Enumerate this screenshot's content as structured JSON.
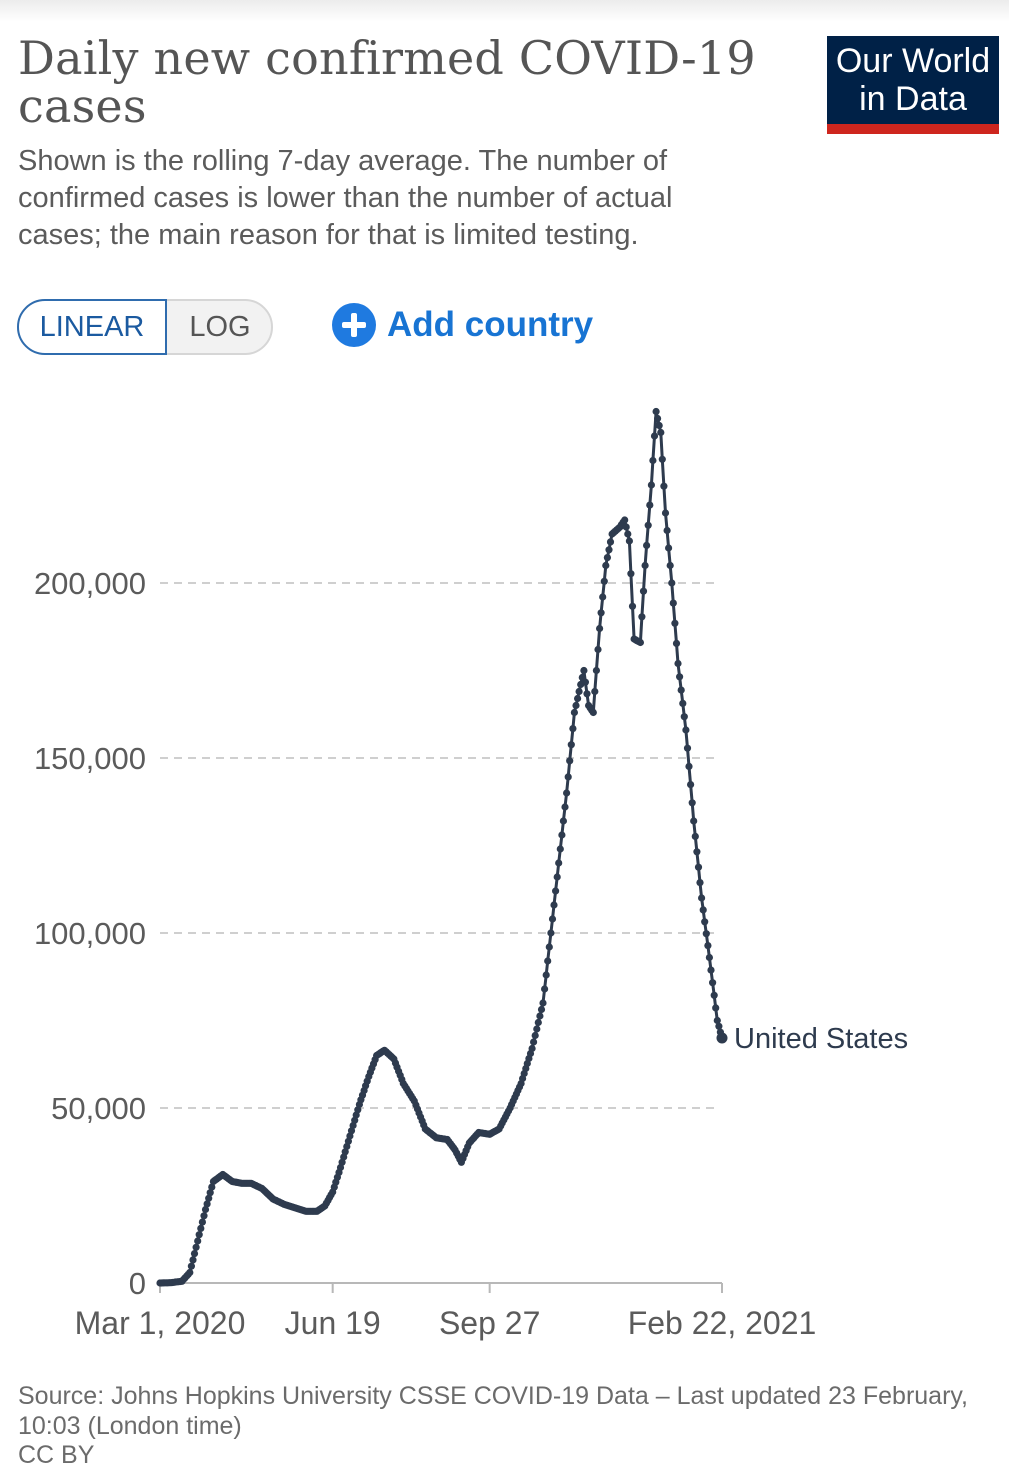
{
  "header": {
    "title": "Daily new confirmed COVID-19 cases",
    "subtitle": "Shown is the rolling 7-day average. The number of confirmed cases is lower than the number of actual cases; the main reason for that is limited testing.",
    "logo_line1": "Our World",
    "logo_line2": "in Data"
  },
  "controls": {
    "linear_label": "LINEAR",
    "log_label": "LOG",
    "add_country_label": "Add country",
    "selected_scale": "linear"
  },
  "footer": {
    "source": "Source: Johns Hopkins University CSSE COVID-19 Data – Last updated 23 February, 10:03 (London time)",
    "license": "CC BY"
  },
  "colors": {
    "line": "#2e3b4e",
    "grid": "#cfcfcf",
    "axis_text": "#5b5b5b",
    "accent_blue": "#1874d3",
    "logo_bg": "#002147",
    "logo_bar": "#ce261e"
  },
  "chart_data": {
    "type": "line",
    "title": "Daily new confirmed COVID-19 cases",
    "xlabel": "",
    "ylabel": "",
    "ylim": [
      0,
      250000
    ],
    "yticks": [
      0,
      50000,
      100000,
      150000,
      200000
    ],
    "ytick_labels": [
      "0",
      "50,000",
      "100,000",
      "150,000",
      "200,000"
    ],
    "xlim": [
      "2020-03-01",
      "2021-02-22"
    ],
    "xticks": [
      "2020-03-01",
      "2020-06-19",
      "2020-09-27",
      "2021-02-22"
    ],
    "xtick_labels": [
      "Mar 1, 2020",
      "Jun 19",
      "Sep 27",
      "Feb 22, 2021"
    ],
    "grid": true,
    "series": [
      {
        "name": "United States",
        "points": [
          [
            "2020-03-01",
            0
          ],
          [
            "2020-03-08",
            100
          ],
          [
            "2020-03-15",
            500
          ],
          [
            "2020-03-20",
            3000
          ],
          [
            "2020-03-25",
            12000
          ],
          [
            "2020-03-30",
            21000
          ],
          [
            "2020-04-04",
            29000
          ],
          [
            "2020-04-10",
            31000
          ],
          [
            "2020-04-16",
            29000
          ],
          [
            "2020-04-22",
            28500
          ],
          [
            "2020-04-28",
            28500
          ],
          [
            "2020-05-05",
            27000
          ],
          [
            "2020-05-12",
            24000
          ],
          [
            "2020-05-19",
            22500
          ],
          [
            "2020-05-26",
            21500
          ],
          [
            "2020-06-02",
            20500
          ],
          [
            "2020-06-09",
            20500
          ],
          [
            "2020-06-14",
            22000
          ],
          [
            "2020-06-19",
            26000
          ],
          [
            "2020-06-24",
            33000
          ],
          [
            "2020-06-30",
            42000
          ],
          [
            "2020-07-06",
            51000
          ],
          [
            "2020-07-12",
            59000
          ],
          [
            "2020-07-17",
            65000
          ],
          [
            "2020-07-22",
            66500
          ],
          [
            "2020-07-28",
            64000
          ],
          [
            "2020-08-03",
            57000
          ],
          [
            "2020-08-10",
            52000
          ],
          [
            "2020-08-17",
            44000
          ],
          [
            "2020-08-24",
            41500
          ],
          [
            "2020-08-31",
            41000
          ],
          [
            "2020-09-05",
            38000
          ],
          [
            "2020-09-09",
            34500
          ],
          [
            "2020-09-14",
            40000
          ],
          [
            "2020-09-20",
            43000
          ],
          [
            "2020-09-27",
            42500
          ],
          [
            "2020-10-03",
            44000
          ],
          [
            "2020-10-10",
            50000
          ],
          [
            "2020-10-17",
            57000
          ],
          [
            "2020-10-24",
            67000
          ],
          [
            "2020-10-31",
            80000
          ],
          [
            "2020-11-05",
            100000
          ],
          [
            "2020-11-10",
            120000
          ],
          [
            "2020-11-15",
            140000
          ],
          [
            "2020-11-20",
            163000
          ],
          [
            "2020-11-26",
            175000
          ],
          [
            "2020-11-29",
            165000
          ],
          [
            "2020-12-02",
            163000
          ],
          [
            "2020-12-06",
            187000
          ],
          [
            "2020-12-10",
            205000
          ],
          [
            "2020-12-14",
            214000
          ],
          [
            "2020-12-19",
            216000
          ],
          [
            "2020-12-22",
            218000
          ],
          [
            "2020-12-25",
            212000
          ],
          [
            "2020-12-28",
            184000
          ],
          [
            "2021-01-01",
            183000
          ],
          [
            "2021-01-04",
            205000
          ],
          [
            "2021-01-08",
            228000
          ],
          [
            "2021-01-11",
            249000
          ],
          [
            "2021-01-14",
            243000
          ],
          [
            "2021-01-17",
            220000
          ],
          [
            "2021-01-21",
            200000
          ],
          [
            "2021-01-25",
            177000
          ],
          [
            "2021-01-30",
            158000
          ],
          [
            "2021-02-04",
            132000
          ],
          [
            "2021-02-09",
            110000
          ],
          [
            "2021-02-14",
            93000
          ],
          [
            "2021-02-19",
            75000
          ],
          [
            "2021-02-22",
            70000
          ]
        ]
      }
    ]
  }
}
